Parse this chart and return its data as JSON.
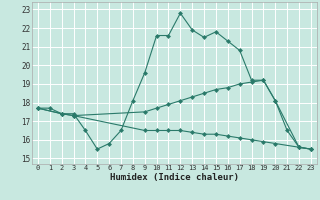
{
  "xlabel": "Humidex (Indice chaleur)",
  "bg_color": "#c8e8e0",
  "grid_color": "#ffffff",
  "line_color": "#2a7a6a",
  "xlim": [
    -0.5,
    23.5
  ],
  "ylim": [
    14.7,
    23.4
  ],
  "xticks": [
    0,
    1,
    2,
    3,
    4,
    5,
    6,
    7,
    8,
    9,
    10,
    11,
    12,
    13,
    14,
    15,
    16,
    17,
    18,
    19,
    20,
    21,
    22,
    23
  ],
  "yticks": [
    15,
    16,
    17,
    18,
    19,
    20,
    21,
    22,
    23
  ],
  "line1_x": [
    0,
    1,
    2,
    3,
    4,
    5,
    6,
    7,
    8,
    9,
    10,
    11,
    12,
    13,
    14,
    15,
    16,
    17,
    18,
    19,
    20,
    21,
    22,
    23
  ],
  "line1_y": [
    17.7,
    17.7,
    17.4,
    17.4,
    16.5,
    15.5,
    15.8,
    16.5,
    18.1,
    19.6,
    21.6,
    21.6,
    22.8,
    21.9,
    21.5,
    21.8,
    21.3,
    20.8,
    19.2,
    19.2,
    18.1,
    16.5,
    15.6,
    15.5
  ],
  "line2_x": [
    0,
    2,
    3,
    9,
    10,
    11,
    12,
    13,
    14,
    15,
    16,
    17,
    18,
    19,
    20,
    22,
    23
  ],
  "line2_y": [
    17.7,
    17.4,
    17.3,
    17.5,
    17.7,
    17.9,
    18.1,
    18.3,
    18.5,
    18.7,
    18.8,
    19.0,
    19.1,
    19.2,
    18.1,
    15.6,
    15.5
  ],
  "line3_x": [
    0,
    2,
    3,
    9,
    10,
    11,
    12,
    13,
    14,
    15,
    16,
    17,
    18,
    19,
    20,
    22,
    23
  ],
  "line3_y": [
    17.7,
    17.4,
    17.3,
    16.5,
    16.5,
    16.5,
    16.5,
    16.4,
    16.3,
    16.3,
    16.2,
    16.1,
    16.0,
    15.9,
    15.8,
    15.6,
    15.5
  ]
}
